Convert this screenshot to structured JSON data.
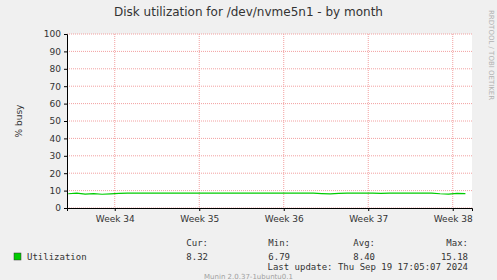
{
  "chart_data": {
    "type": "line",
    "title": "Disk utilization for /dev/nvme5n1 - by month",
    "y_label": "% busy",
    "x": [
      33.45,
      33.55,
      33.65,
      33.75,
      33.85,
      33.95,
      34.05,
      34.15,
      34.25,
      34.35,
      34.45,
      34.55,
      34.65,
      34.75,
      34.85,
      34.95,
      35.05,
      35.15,
      35.25,
      35.35,
      35.45,
      35.55,
      35.65,
      35.75,
      35.85,
      35.95,
      36.05,
      36.15,
      36.25,
      36.35,
      36.45,
      36.55,
      36.65,
      36.75,
      36.85,
      36.95,
      37.05,
      37.15,
      37.25,
      37.35,
      37.45,
      37.55,
      37.65,
      37.75,
      37.85,
      37.95,
      38.05,
      38.15
    ],
    "series": [
      {
        "name": "Utilization",
        "color": "#00cc00",
        "values": [
          8.2,
          8.5,
          8.0,
          8.3,
          7.9,
          8.1,
          8.4,
          8.6,
          8.5,
          8.5,
          8.6,
          8.5,
          8.6,
          8.6,
          8.5,
          8.6,
          8.5,
          8.6,
          8.6,
          8.5,
          8.5,
          8.6,
          8.6,
          8.5,
          8.6,
          8.5,
          8.6,
          8.5,
          8.5,
          8.6,
          8.3,
          8.1,
          8.4,
          8.6,
          8.5,
          8.6,
          8.5,
          8.4,
          8.5,
          8.6,
          8.5,
          8.6,
          8.5,
          8.6,
          8.2,
          8.0,
          8.4,
          8.3
        ]
      }
    ],
    "xlim": [
      33.435,
      38.228
    ],
    "xticks": [
      {
        "value": 34,
        "label": "Week 34"
      },
      {
        "value": 35,
        "label": "Week 35"
      },
      {
        "value": 36,
        "label": "Week 36"
      },
      {
        "value": 37,
        "label": "Week 37"
      },
      {
        "value": 38,
        "label": "Week 38"
      }
    ],
    "ylim": [
      0,
      100
    ],
    "yticks": [
      0,
      10,
      20,
      30,
      40,
      50,
      60,
      70,
      80,
      90,
      100
    ],
    "grid": true,
    "stats": {
      "columns": [
        "Cur:",
        "Min:",
        "Avg:",
        "Max:"
      ],
      "values": [
        "8.32",
        "6.79",
        "8.40",
        "15.18"
      ]
    },
    "last_update": "Last update: Thu Sep 19 17:05:07 2024",
    "watermark": "RRDTOOL / TOBI OETIKER",
    "credit": "Munin 2.0.37-1ubuntu0.1"
  }
}
